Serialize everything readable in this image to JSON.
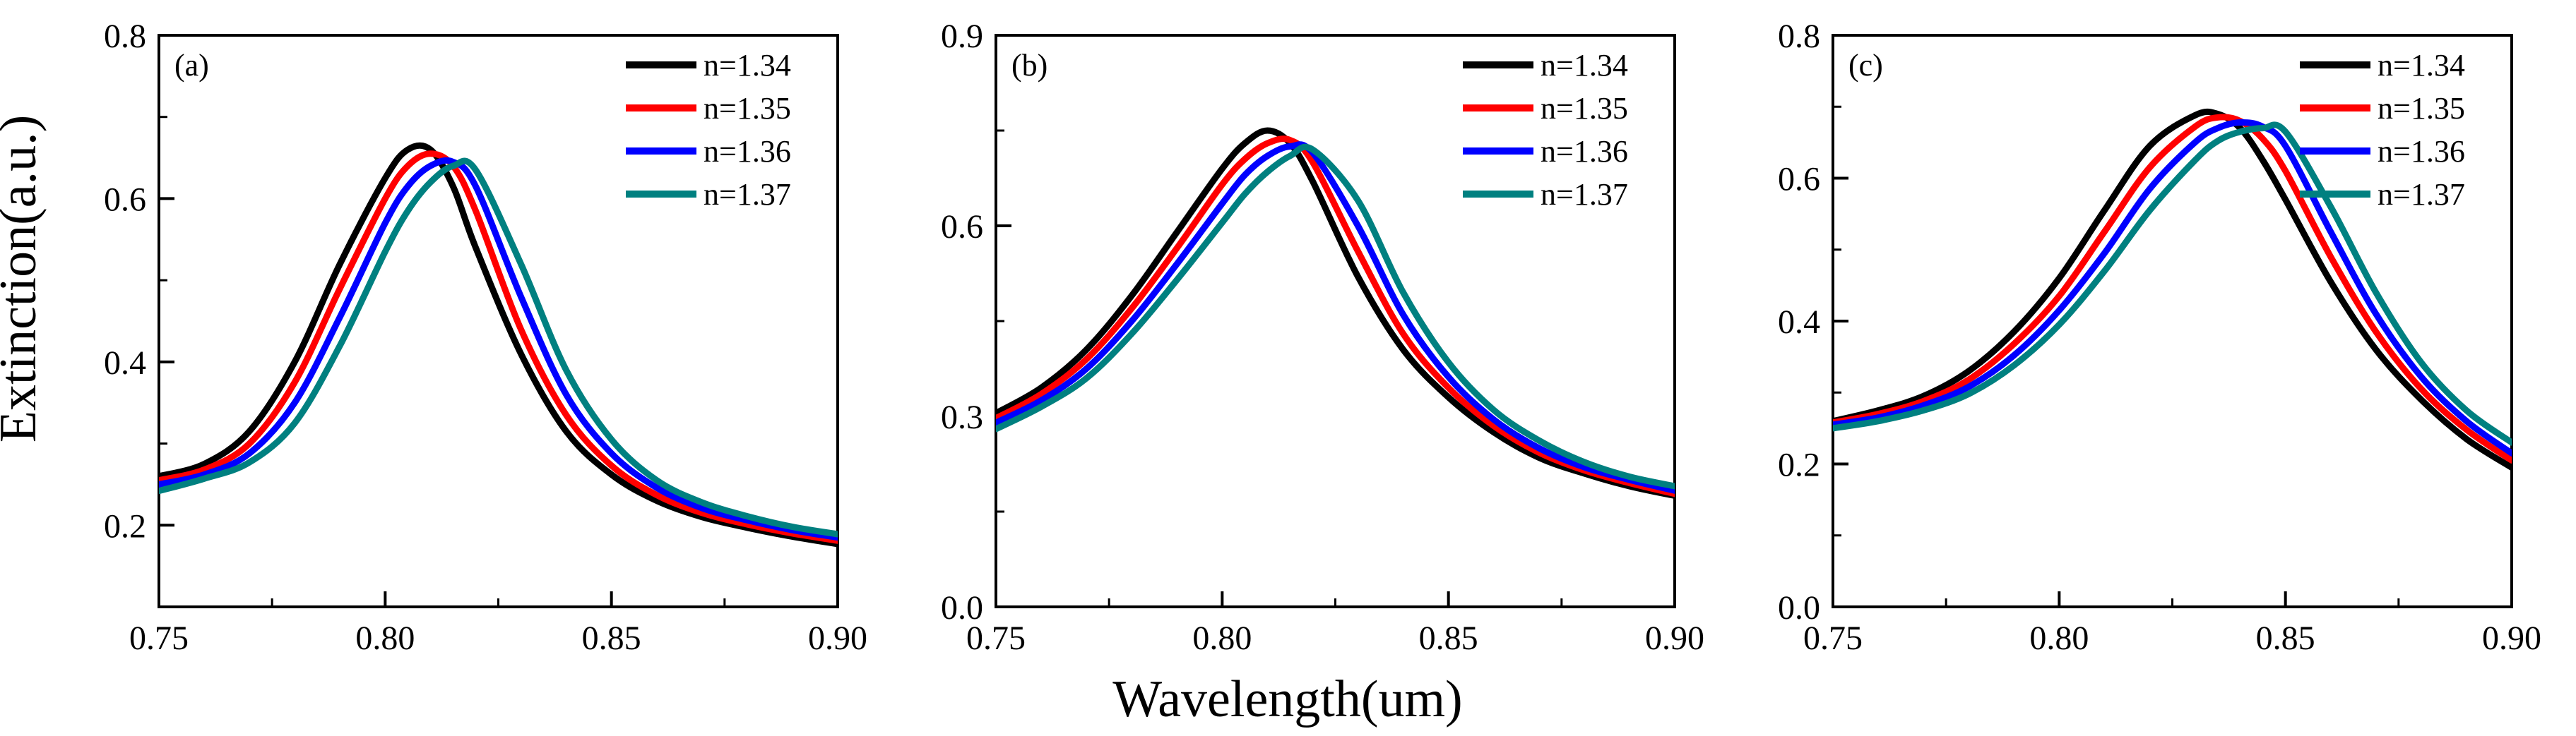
{
  "figure": {
    "ylabel": "Extinction(a.u.)",
    "xlabel": "Wavelength(um)"
  },
  "chart_data": [
    {
      "type": "line",
      "panel_label": "(a)",
      "title": "",
      "xlabel": "Wavelength(um)",
      "ylabel": "Extinction(a.u.)",
      "xlim": [
        0.75,
        0.9
      ],
      "ylim": [
        0.1,
        0.8
      ],
      "xticks": [
        "0.75",
        "0.80",
        "0.85",
        "0.90"
      ],
      "yticks": [
        "0.2",
        "0.4",
        "0.6",
        "0.8"
      ],
      "legend_position": "top-right",
      "x": [
        0.75,
        0.76,
        0.77,
        0.78,
        0.79,
        0.8,
        0.805,
        0.81,
        0.815,
        0.82,
        0.83,
        0.84,
        0.85,
        0.86,
        0.87,
        0.88,
        0.89,
        0.9
      ],
      "series": [
        {
          "name": "n=1.34",
          "color": "#000000",
          "values": [
            0.26,
            0.275,
            0.315,
            0.4,
            0.52,
            0.625,
            0.66,
            0.66,
            0.615,
            0.54,
            0.41,
            0.315,
            0.262,
            0.23,
            0.21,
            0.197,
            0.186,
            0.177
          ]
        },
        {
          "name": "n=1.35",
          "color": "#ff0000",
          "values": [
            0.255,
            0.268,
            0.3,
            0.375,
            0.49,
            0.6,
            0.64,
            0.655,
            0.64,
            0.585,
            0.44,
            0.335,
            0.273,
            0.237,
            0.215,
            0.201,
            0.19,
            0.181
          ]
        },
        {
          "name": "n=1.36",
          "color": "#0000ff",
          "values": [
            0.25,
            0.262,
            0.288,
            0.35,
            0.455,
            0.57,
            0.615,
            0.64,
            0.645,
            0.615,
            0.48,
            0.36,
            0.288,
            0.246,
            0.221,
            0.206,
            0.194,
            0.185
          ]
        },
        {
          "name": "n=1.37",
          "color": "#008080",
          "values": [
            0.242,
            0.257,
            0.277,
            0.325,
            0.42,
            0.535,
            0.585,
            0.62,
            0.64,
            0.635,
            0.52,
            0.39,
            0.305,
            0.255,
            0.228,
            0.211,
            0.198,
            0.189
          ]
        }
      ]
    },
    {
      "type": "line",
      "panel_label": "(b)",
      "title": "",
      "xlabel": "Wavelength(um)",
      "ylabel": "",
      "xlim": [
        0.75,
        0.9
      ],
      "ylim": [
        0.0,
        0.9
      ],
      "xticks": [
        "0.75",
        "0.80",
        "0.85",
        "0.90"
      ],
      "yticks": [
        "0.0",
        "0.3",
        "0.6",
        "0.9"
      ],
      "legend_position": "top-right",
      "x": [
        0.75,
        0.76,
        0.77,
        0.78,
        0.79,
        0.8,
        0.805,
        0.81,
        0.815,
        0.82,
        0.83,
        0.84,
        0.85,
        0.86,
        0.87,
        0.88,
        0.89,
        0.9
      ],
      "series": [
        {
          "name": "n=1.34",
          "color": "#000000",
          "values": [
            0.305,
            0.345,
            0.405,
            0.49,
            0.59,
            0.69,
            0.73,
            0.75,
            0.73,
            0.67,
            0.52,
            0.405,
            0.33,
            0.275,
            0.235,
            0.21,
            0.19,
            0.175
          ]
        },
        {
          "name": "n=1.35",
          "color": "#ff0000",
          "values": [
            0.297,
            0.335,
            0.39,
            0.47,
            0.565,
            0.665,
            0.705,
            0.73,
            0.735,
            0.7,
            0.56,
            0.43,
            0.345,
            0.285,
            0.243,
            0.215,
            0.195,
            0.178
          ]
        },
        {
          "name": "n=1.36",
          "color": "#0000ff",
          "values": [
            0.29,
            0.325,
            0.375,
            0.45,
            0.54,
            0.635,
            0.68,
            0.71,
            0.725,
            0.715,
            0.6,
            0.46,
            0.362,
            0.295,
            0.25,
            0.22,
            0.2,
            0.183
          ]
        },
        {
          "name": "n=1.37",
          "color": "#008080",
          "values": [
            0.28,
            0.315,
            0.36,
            0.43,
            0.515,
            0.605,
            0.65,
            0.685,
            0.71,
            0.72,
            0.64,
            0.495,
            0.385,
            0.31,
            0.262,
            0.228,
            0.205,
            0.19
          ]
        }
      ]
    },
    {
      "type": "line",
      "panel_label": "(c)",
      "title": "",
      "xlabel": "Wavelength(um)",
      "ylabel": "",
      "xlim": [
        0.75,
        0.9
      ],
      "ylim": [
        0.0,
        0.8
      ],
      "xticks": [
        "0.75",
        "0.80",
        "0.85",
        "0.90"
      ],
      "yticks": [
        "0.0",
        "0.2",
        "0.4",
        "0.6",
        "0.8"
      ],
      "legend_position": "top-right",
      "x": [
        0.75,
        0.76,
        0.77,
        0.78,
        0.79,
        0.8,
        0.81,
        0.82,
        0.83,
        0.835,
        0.84,
        0.845,
        0.85,
        0.86,
        0.87,
        0.88,
        0.89,
        0.9
      ],
      "series": [
        {
          "name": "n=1.34",
          "color": "#000000",
          "values": [
            0.26,
            0.275,
            0.295,
            0.33,
            0.385,
            0.46,
            0.555,
            0.645,
            0.688,
            0.69,
            0.67,
            0.625,
            0.57,
            0.455,
            0.36,
            0.29,
            0.235,
            0.195
          ]
        },
        {
          "name": "n=1.35",
          "color": "#ff0000",
          "values": [
            0.258,
            0.27,
            0.288,
            0.318,
            0.368,
            0.435,
            0.525,
            0.615,
            0.672,
            0.685,
            0.68,
            0.655,
            0.61,
            0.49,
            0.385,
            0.305,
            0.248,
            0.205
          ]
        },
        {
          "name": "n=1.36",
          "color": "#0000ff",
          "values": [
            0.255,
            0.265,
            0.282,
            0.308,
            0.352,
            0.415,
            0.495,
            0.585,
            0.65,
            0.67,
            0.678,
            0.672,
            0.645,
            0.525,
            0.41,
            0.322,
            0.26,
            0.215
          ]
        },
        {
          "name": "n=1.37",
          "color": "#008080",
          "values": [
            0.25,
            0.26,
            0.275,
            0.298,
            0.338,
            0.395,
            0.47,
            0.555,
            0.625,
            0.652,
            0.665,
            0.67,
            0.665,
            0.56,
            0.44,
            0.342,
            0.275,
            0.23
          ]
        }
      ]
    }
  ]
}
